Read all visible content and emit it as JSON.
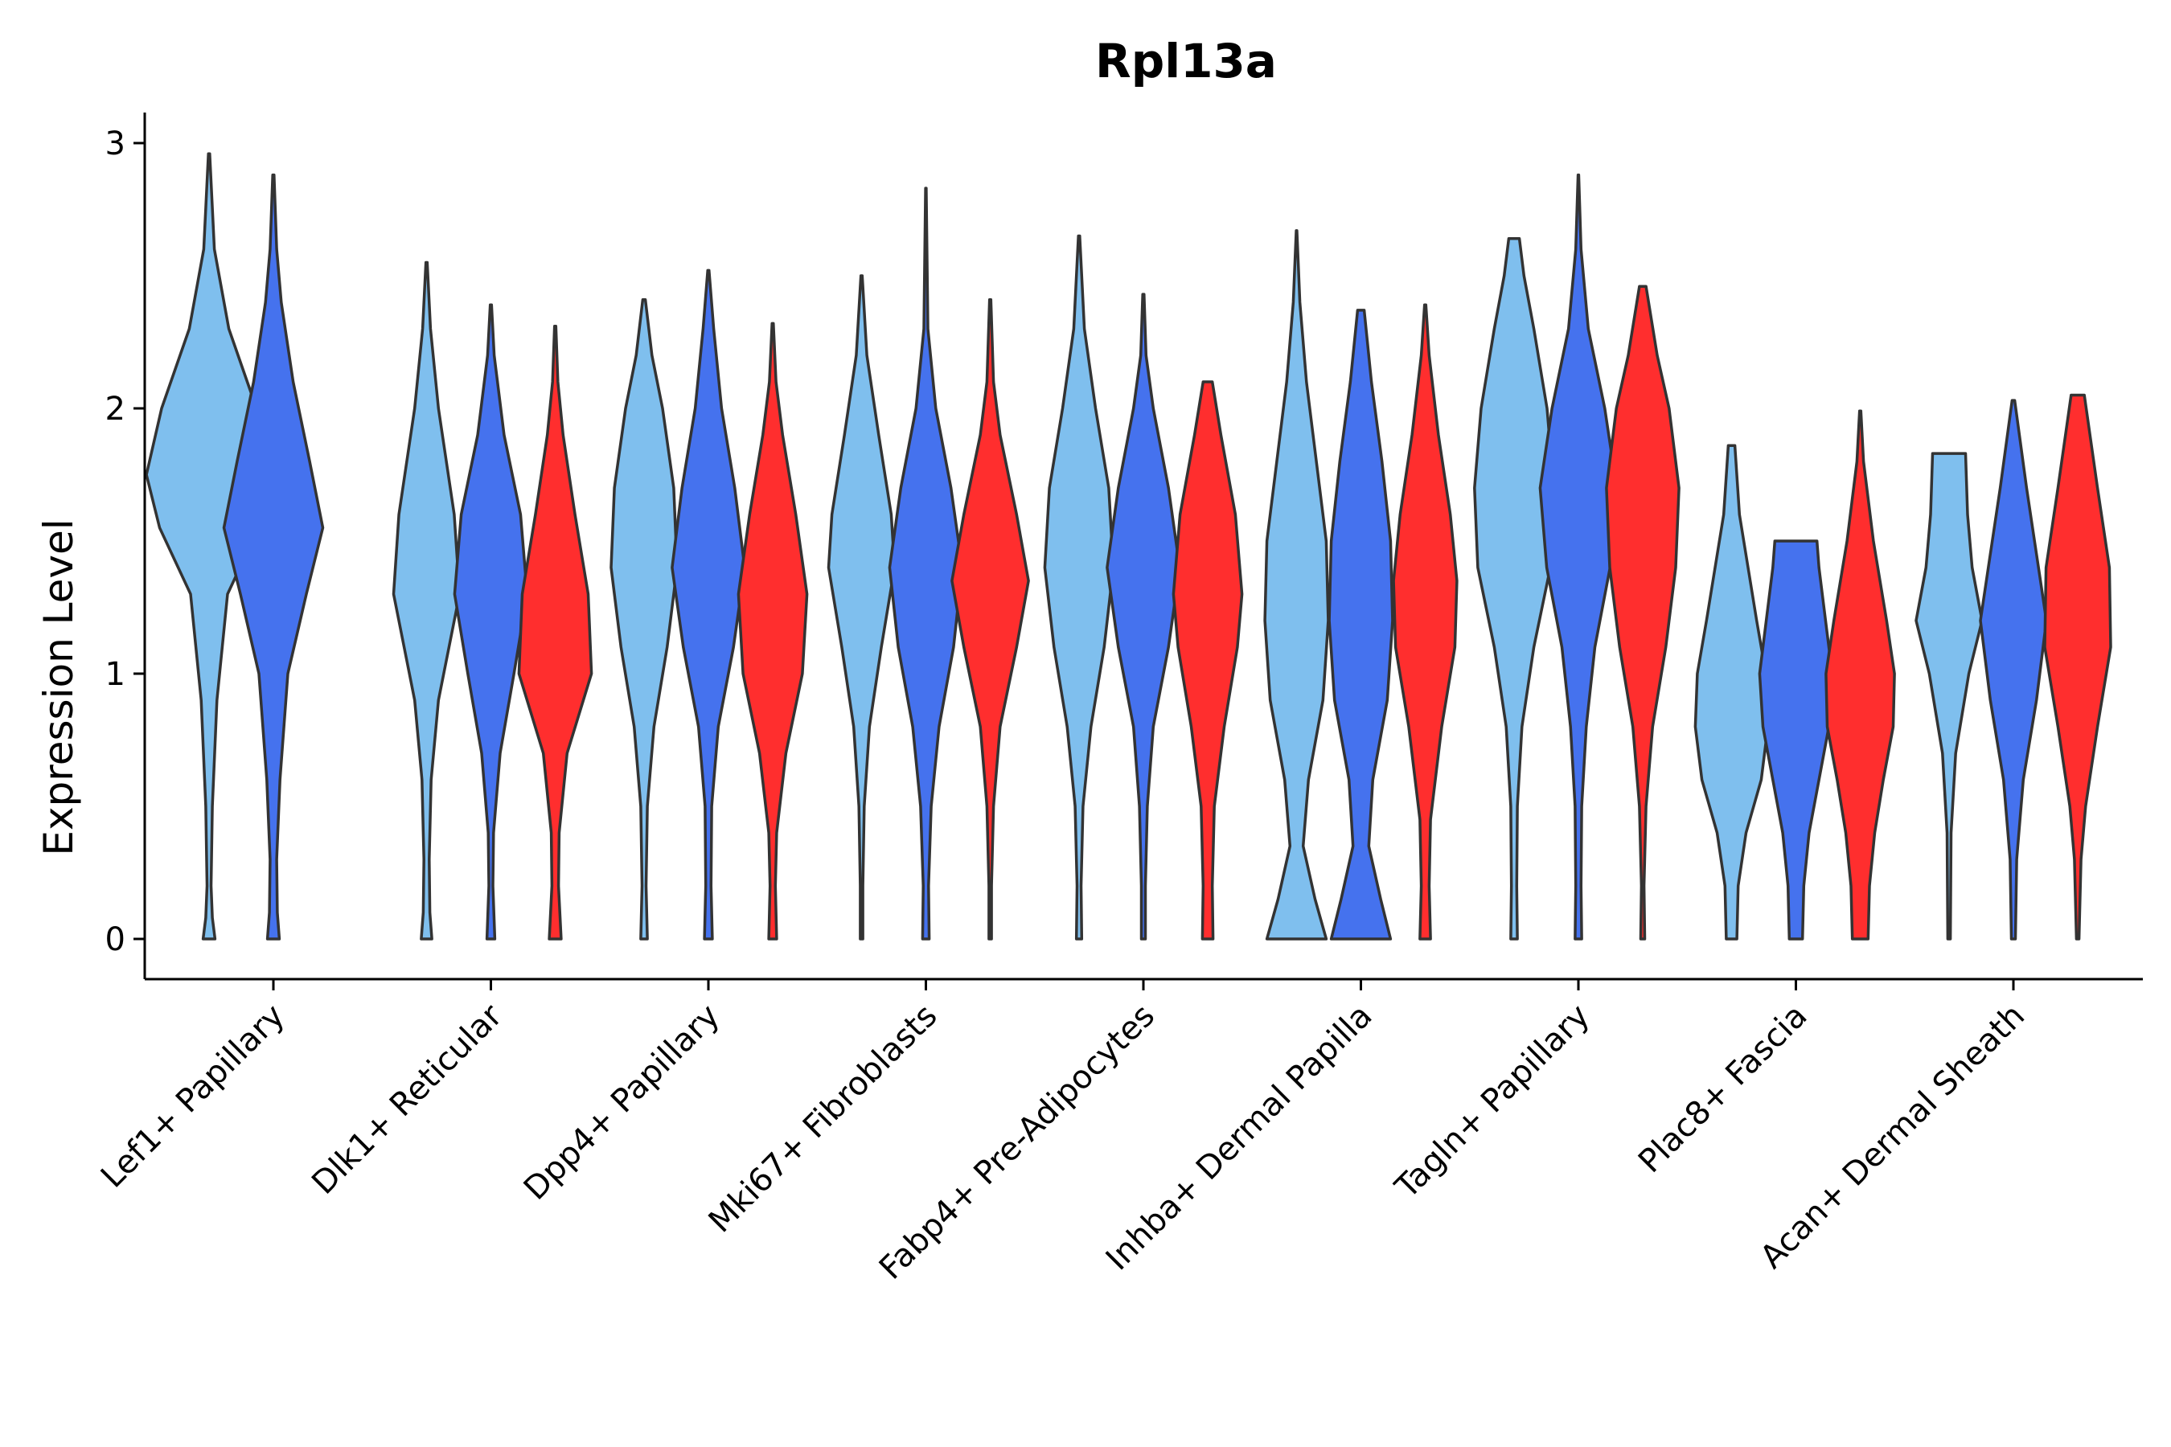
{
  "chart_data": {
    "type": "violin",
    "title": "Rpl13a",
    "xlabel": "",
    "ylabel": "Expression Level",
    "ylim": [
      -0.15,
      3.12
    ],
    "yticks": [
      0,
      1,
      2,
      3
    ],
    "grid": false,
    "legend": "none",
    "categories": [
      "Lef1+ Papillary",
      "Dlk1+ Reticular",
      "Dpp4+ Papillary",
      "Mki67+ Fibroblasts",
      "Fabp4+ Pre-Adipocytes",
      "Inhba+ Dermal Papilla",
      "Tagln+ Papillary",
      "Plac8+ Fascia",
      "Acan+ Dermal Sheath"
    ],
    "series_colors": [
      "#7FBFEE",
      "#4572EE",
      "#FF2E2E"
    ],
    "violins": [
      {
        "category": "Lef1+ Papillary",
        "group": 0,
        "max": 2.96,
        "hw": [
          [
            0,
            0.09
          ],
          [
            0.08,
            0.05
          ],
          [
            0.2,
            0.03
          ],
          [
            0.5,
            0.05
          ],
          [
            0.9,
            0.12
          ],
          [
            1.3,
            0.28
          ],
          [
            1.55,
            0.75
          ],
          [
            1.75,
            0.95
          ],
          [
            2.0,
            0.72
          ],
          [
            2.3,
            0.3
          ],
          [
            2.6,
            0.08
          ],
          [
            2.96,
            0.01
          ]
        ]
      },
      {
        "category": "Lef1+ Papillary",
        "group": 1,
        "max": 2.88,
        "hw": [
          [
            0,
            0.09
          ],
          [
            0.1,
            0.06
          ],
          [
            0.3,
            0.05
          ],
          [
            0.6,
            0.1
          ],
          [
            1.0,
            0.22
          ],
          [
            1.3,
            0.5
          ],
          [
            1.55,
            0.75
          ],
          [
            1.8,
            0.55
          ],
          [
            2.1,
            0.3
          ],
          [
            2.4,
            0.12
          ],
          [
            2.6,
            0.05
          ],
          [
            2.88,
            0.01
          ]
        ]
      },
      {
        "category": "Dlk1+ Reticular",
        "group": 0,
        "max": 2.55,
        "hw": [
          [
            0,
            0.08
          ],
          [
            0.1,
            0.05
          ],
          [
            0.3,
            0.04
          ],
          [
            0.6,
            0.07
          ],
          [
            0.9,
            0.18
          ],
          [
            1.3,
            0.5
          ],
          [
            1.6,
            0.42
          ],
          [
            2.0,
            0.18
          ],
          [
            2.3,
            0.06
          ],
          [
            2.55,
            0.01
          ]
        ]
      },
      {
        "category": "Dlk1+ Reticular",
        "group": 1,
        "max": 2.39,
        "hw": [
          [
            0,
            0.06
          ],
          [
            0.2,
            0.03
          ],
          [
            0.4,
            0.04
          ],
          [
            0.7,
            0.14
          ],
          [
            1.0,
            0.35
          ],
          [
            1.3,
            0.55
          ],
          [
            1.6,
            0.45
          ],
          [
            1.9,
            0.2
          ],
          [
            2.2,
            0.05
          ],
          [
            2.39,
            0.01
          ]
        ]
      },
      {
        "category": "Dlk1+ Reticular",
        "group": 2,
        "max": 2.31,
        "hw": [
          [
            0,
            0.09
          ],
          [
            0.2,
            0.05
          ],
          [
            0.4,
            0.06
          ],
          [
            0.7,
            0.18
          ],
          [
            1.0,
            0.55
          ],
          [
            1.3,
            0.5
          ],
          [
            1.6,
            0.3
          ],
          [
            1.9,
            0.12
          ],
          [
            2.1,
            0.04
          ],
          [
            2.31,
            0.01
          ]
        ]
      },
      {
        "category": "Mki67+ Fibroblasts",
        "group": 0,
        "max": 2.5,
        "hw": [
          [
            0,
            0.02
          ],
          [
            0.2,
            0.02
          ],
          [
            0.5,
            0.04
          ],
          [
            0.8,
            0.12
          ],
          [
            1.1,
            0.3
          ],
          [
            1.4,
            0.5
          ],
          [
            1.6,
            0.45
          ],
          [
            1.9,
            0.26
          ],
          [
            2.2,
            0.08
          ],
          [
            2.5,
            0.01
          ]
        ]
      },
      {
        "category": "Mki67+ Fibroblasts",
        "group": 1,
        "max": 2.83,
        "hw": [
          [
            0,
            0.05
          ],
          [
            0.2,
            0.04
          ],
          [
            0.5,
            0.08
          ],
          [
            0.8,
            0.2
          ],
          [
            1.1,
            0.42
          ],
          [
            1.4,
            0.55
          ],
          [
            1.7,
            0.38
          ],
          [
            2.0,
            0.15
          ],
          [
            2.3,
            0.03
          ],
          [
            2.83,
            0.005
          ]
        ]
      },
      {
        "category": "Mki67+ Fibroblasts",
        "group": 2,
        "max": 2.41,
        "hw": [
          [
            0,
            0.02
          ],
          [
            0.2,
            0.02
          ],
          [
            0.5,
            0.05
          ],
          [
            0.8,
            0.15
          ],
          [
            1.1,
            0.4
          ],
          [
            1.35,
            0.58
          ],
          [
            1.6,
            0.4
          ],
          [
            1.9,
            0.15
          ],
          [
            2.1,
            0.05
          ],
          [
            2.41,
            0.01
          ]
        ]
      },
      {
        "category": "Acan+ Dermal Sheath",
        "group": 0,
        "max": 1.83,
        "hw": [
          [
            0,
            0.02
          ],
          [
            0.4,
            0.03
          ],
          [
            0.7,
            0.1
          ],
          [
            1.0,
            0.3
          ],
          [
            1.2,
            0.5
          ],
          [
            1.4,
            0.35
          ],
          [
            1.6,
            0.28
          ],
          [
            1.83,
            0.25
          ]
        ]
      },
      {
        "category": "Acan+ Dermal Sheath",
        "group": 1,
        "max": 2.03,
        "hw": [
          [
            0,
            0.03
          ],
          [
            0.3,
            0.05
          ],
          [
            0.6,
            0.15
          ],
          [
            0.9,
            0.35
          ],
          [
            1.2,
            0.5
          ],
          [
            1.4,
            0.38
          ],
          [
            1.7,
            0.2
          ],
          [
            2.03,
            0.02
          ]
        ]
      },
      {
        "category": "Acan+ Dermal Sheath",
        "group": 2,
        "max": 2.05,
        "hw": [
          [
            0,
            0.02
          ],
          [
            0.3,
            0.05
          ],
          [
            0.5,
            0.12
          ],
          [
            0.8,
            0.3
          ],
          [
            1.1,
            0.5
          ],
          [
            1.4,
            0.48
          ],
          [
            1.7,
            0.3
          ],
          [
            2.05,
            0.1
          ]
        ]
      }
    ],
    "violins_extra": [
      {
        "category": "Dpp4+ Papillary",
        "group": 0,
        "max": 2.41,
        "hw": [
          [
            0,
            0.05
          ],
          [
            0.2,
            0.03
          ],
          [
            0.5,
            0.05
          ],
          [
            0.8,
            0.15
          ],
          [
            1.1,
            0.35
          ],
          [
            1.4,
            0.5
          ],
          [
            1.7,
            0.45
          ],
          [
            2.0,
            0.28
          ],
          [
            2.2,
            0.12
          ],
          [
            2.41,
            0.02
          ]
        ]
      },
      {
        "category": "Dpp4+ Papillary",
        "group": 1,
        "max": 2.52,
        "hw": [
          [
            0,
            0.06
          ],
          [
            0.2,
            0.04
          ],
          [
            0.5,
            0.05
          ],
          [
            0.8,
            0.15
          ],
          [
            1.1,
            0.38
          ],
          [
            1.4,
            0.55
          ],
          [
            1.7,
            0.4
          ],
          [
            2.0,
            0.2
          ],
          [
            2.3,
            0.08
          ],
          [
            2.52,
            0.01
          ]
        ]
      },
      {
        "category": "Dpp4+ Papillary",
        "group": 2,
        "max": 2.32,
        "hw": [
          [
            0,
            0.06
          ],
          [
            0.2,
            0.04
          ],
          [
            0.4,
            0.06
          ],
          [
            0.7,
            0.2
          ],
          [
            1.0,
            0.45
          ],
          [
            1.3,
            0.52
          ],
          [
            1.6,
            0.35
          ],
          [
            1.9,
            0.15
          ],
          [
            2.1,
            0.05
          ],
          [
            2.32,
            0.01
          ]
        ]
      },
      {
        "category": "Fabp4+ Pre-Adipocytes",
        "group": 0,
        "max": 2.65,
        "hw": [
          [
            0,
            0.04
          ],
          [
            0.2,
            0.03
          ],
          [
            0.5,
            0.06
          ],
          [
            0.8,
            0.18
          ],
          [
            1.1,
            0.38
          ],
          [
            1.4,
            0.52
          ],
          [
            1.7,
            0.45
          ],
          [
            2.0,
            0.25
          ],
          [
            2.3,
            0.08
          ],
          [
            2.65,
            0.01
          ]
        ]
      },
      {
        "category": "Fabp4+ Pre-Adipocytes",
        "group": 1,
        "max": 2.43,
        "hw": [
          [
            0,
            0.03
          ],
          [
            0.2,
            0.03
          ],
          [
            0.5,
            0.06
          ],
          [
            0.8,
            0.15
          ],
          [
            1.1,
            0.38
          ],
          [
            1.4,
            0.55
          ],
          [
            1.7,
            0.38
          ],
          [
            2.0,
            0.15
          ],
          [
            2.2,
            0.04
          ],
          [
            2.43,
            0.01
          ]
        ]
      },
      {
        "category": "Fabp4+ Pre-Adipocytes",
        "group": 2,
        "max": 2.1,
        "hw": [
          [
            0,
            0.08
          ],
          [
            0.2,
            0.07
          ],
          [
            0.5,
            0.1
          ],
          [
            0.8,
            0.25
          ],
          [
            1.1,
            0.45
          ],
          [
            1.3,
            0.52
          ],
          [
            1.6,
            0.42
          ],
          [
            1.9,
            0.2
          ],
          [
            2.1,
            0.07
          ]
        ]
      },
      {
        "category": "Inhba+ Dermal Papilla",
        "group": 0,
        "max": 2.67,
        "hw": [
          [
            0,
            0.45
          ],
          [
            0.15,
            0.28
          ],
          [
            0.35,
            0.1
          ],
          [
            0.6,
            0.18
          ],
          [
            0.9,
            0.4
          ],
          [
            1.2,
            0.48
          ],
          [
            1.5,
            0.45
          ],
          [
            1.8,
            0.3
          ],
          [
            2.1,
            0.15
          ],
          [
            2.4,
            0.05
          ],
          [
            2.67,
            0.005
          ]
        ]
      },
      {
        "category": "Inhba+ Dermal Papilla",
        "group": 1,
        "max": 2.37,
        "hw": [
          [
            0,
            0.45
          ],
          [
            0.15,
            0.3
          ],
          [
            0.35,
            0.12
          ],
          [
            0.6,
            0.18
          ],
          [
            0.9,
            0.4
          ],
          [
            1.2,
            0.48
          ],
          [
            1.5,
            0.45
          ],
          [
            1.8,
            0.32
          ],
          [
            2.1,
            0.16
          ],
          [
            2.37,
            0.05
          ]
        ]
      },
      {
        "category": "Inhba+ Dermal Papilla",
        "group": 2,
        "max": 2.39,
        "hw": [
          [
            0,
            0.08
          ],
          [
            0.2,
            0.06
          ],
          [
            0.45,
            0.08
          ],
          [
            0.8,
            0.25
          ],
          [
            1.1,
            0.45
          ],
          [
            1.35,
            0.48
          ],
          [
            1.6,
            0.38
          ],
          [
            1.9,
            0.2
          ],
          [
            2.2,
            0.06
          ],
          [
            2.39,
            0.01
          ]
        ]
      },
      {
        "category": "Tagln+ Papillary",
        "group": 0,
        "max": 2.64,
        "hw": [
          [
            0,
            0.05
          ],
          [
            0.2,
            0.04
          ],
          [
            0.5,
            0.05
          ],
          [
            0.8,
            0.12
          ],
          [
            1.1,
            0.3
          ],
          [
            1.4,
            0.55
          ],
          [
            1.7,
            0.6
          ],
          [
            2.0,
            0.5
          ],
          [
            2.3,
            0.3
          ],
          [
            2.5,
            0.15
          ],
          [
            2.64,
            0.08
          ]
        ]
      },
      {
        "category": "Tagln+ Papillary",
        "group": 1,
        "max": 2.88,
        "hw": [
          [
            0,
            0.05
          ],
          [
            0.2,
            0.04
          ],
          [
            0.5,
            0.05
          ],
          [
            0.8,
            0.12
          ],
          [
            1.1,
            0.25
          ],
          [
            1.4,
            0.48
          ],
          [
            1.7,
            0.58
          ],
          [
            2.0,
            0.4
          ],
          [
            2.3,
            0.15
          ],
          [
            2.6,
            0.04
          ],
          [
            2.88,
            0.005
          ]
        ]
      },
      {
        "category": "Tagln+ Papillary",
        "group": 2,
        "max": 2.46,
        "hw": [
          [
            0,
            0.03
          ],
          [
            0.2,
            0.02
          ],
          [
            0.5,
            0.05
          ],
          [
            0.8,
            0.15
          ],
          [
            1.1,
            0.35
          ],
          [
            1.4,
            0.5
          ],
          [
            1.7,
            0.55
          ],
          [
            2.0,
            0.4
          ],
          [
            2.2,
            0.22
          ],
          [
            2.46,
            0.05
          ]
        ]
      },
      {
        "category": "Plac8+ Fascia",
        "group": 0,
        "max": 1.86,
        "hw": [
          [
            0,
            0.08
          ],
          [
            0.2,
            0.1
          ],
          [
            0.4,
            0.22
          ],
          [
            0.6,
            0.45
          ],
          [
            0.8,
            0.55
          ],
          [
            1.0,
            0.52
          ],
          [
            1.2,
            0.38
          ],
          [
            1.4,
            0.25
          ],
          [
            1.6,
            0.12
          ],
          [
            1.86,
            0.05
          ]
        ]
      },
      {
        "category": "Plac8+ Fascia",
        "group": 1,
        "max": 1.5,
        "hw": [
          [
            0,
            0.1
          ],
          [
            0.2,
            0.12
          ],
          [
            0.4,
            0.2
          ],
          [
            0.6,
            0.35
          ],
          [
            0.8,
            0.5
          ],
          [
            1.0,
            0.55
          ],
          [
            1.2,
            0.45
          ],
          [
            1.4,
            0.35
          ],
          [
            1.5,
            0.32
          ]
        ]
      },
      {
        "category": "Plac8+ Fascia",
        "group": 2,
        "max": 1.99,
        "hw": [
          [
            0,
            0.12
          ],
          [
            0.2,
            0.14
          ],
          [
            0.4,
            0.22
          ],
          [
            0.6,
            0.35
          ],
          [
            0.8,
            0.5
          ],
          [
            1.0,
            0.52
          ],
          [
            1.2,
            0.4
          ],
          [
            1.5,
            0.2
          ],
          [
            1.8,
            0.05
          ],
          [
            1.99,
            0.01
          ]
        ]
      }
    ]
  }
}
